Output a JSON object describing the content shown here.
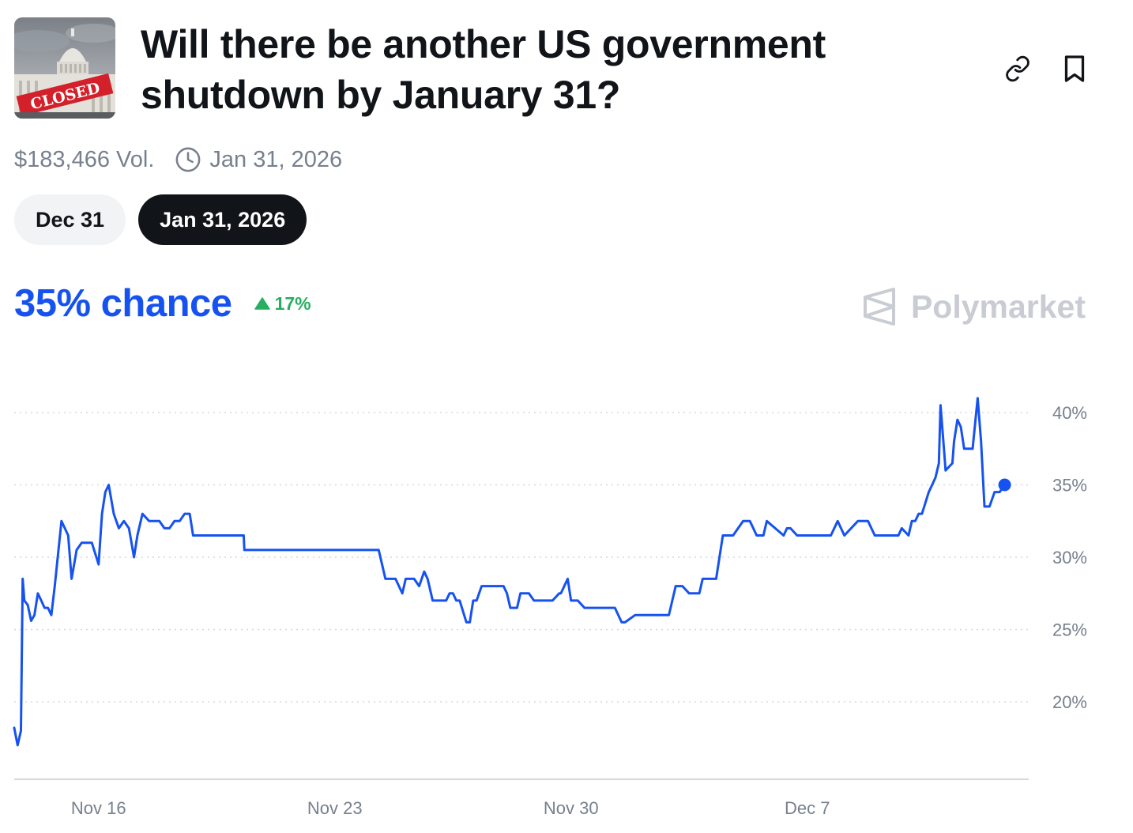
{
  "market": {
    "title": "Will there be another US government shutdown by January 31?",
    "thumbnail_label": "CLOSED",
    "volume": "$183,466 Vol.",
    "end_date": "Jan 31, 2026",
    "tabs": [
      {
        "label": "Dec 31",
        "active": false
      },
      {
        "label": "Jan 31, 2026",
        "active": true
      }
    ],
    "chance": "35% chance",
    "change": "17%",
    "brand": "Polymarket",
    "icons": {
      "link": "link-icon",
      "bookmark": "bookmark-icon",
      "clock": "clock-icon",
      "up": "triangle-up-icon"
    }
  },
  "colors": {
    "accent": "#1652f0",
    "positive": "#27ae60",
    "text": "#111418",
    "muted": "#77808d",
    "grid": "#d5d8dd"
  },
  "chart_data": {
    "type": "line",
    "ylim": [
      15.5,
      42
    ],
    "yticks": [
      20,
      25,
      30,
      35,
      40
    ],
    "ytick_labels": [
      "20%",
      "25%",
      "30%",
      "35%",
      "40%"
    ],
    "xlim": [
      0,
      29.5
    ],
    "xticks": [
      2.5,
      9.5,
      16.5,
      23.5
    ],
    "xtick_labels": [
      "Nov 16",
      "Nov 23",
      "Nov 30",
      "Dec 7"
    ],
    "grid": true,
    "series": [
      {
        "color": "#1652f0",
        "x": [
          0,
          0.1,
          0.2,
          0.25,
          0.3,
          0.4,
          0.5,
          0.6,
          0.7,
          0.8,
          0.9,
          1.0,
          1.1,
          1.2,
          1.4,
          1.6,
          1.7,
          1.85,
          2.0,
          2.15,
          2.3,
          2.5,
          2.6,
          2.7,
          2.8,
          2.95,
          3.1,
          3.25,
          3.4,
          3.55,
          3.65,
          3.8,
          4.0,
          4.15,
          4.3,
          4.45,
          4.6,
          4.75,
          4.9,
          5.05,
          5.2,
          5.3,
          5.4,
          5.55,
          6.8,
          6.82,
          10.8,
          11.0,
          11.2,
          11.3,
          11.5,
          11.6,
          11.7,
          11.85,
          12.0,
          12.15,
          12.25,
          12.4,
          12.5,
          12.65,
          12.8,
          12.9,
          13.0,
          13.1,
          13.2,
          13.4,
          13.5,
          13.6,
          13.7,
          13.85,
          14.5,
          14.6,
          14.7,
          14.8,
          14.9,
          15.0,
          15.25,
          15.4,
          15.5,
          15.55,
          15.6,
          15.95,
          16.15,
          16.2,
          16.3,
          16.4,
          16.5,
          16.55,
          16.7,
          16.9,
          17.0,
          17.8,
          18.0,
          18.1,
          18.4,
          18.6,
          18.8,
          19.4,
          19.6,
          19.8,
          20.0,
          20.3,
          20.4,
          20.6,
          20.8,
          21.0,
          21.2,
          21.3,
          21.6,
          21.8,
          22.0,
          22.2,
          22.3,
          22.8,
          22.9,
          23.0,
          23.2,
          23.4,
          23.5,
          23.7,
          23.9,
          24.0,
          24.2,
          24.4,
          24.6,
          25.0,
          25.2,
          25.3,
          25.5,
          25.7,
          26.2,
          26.3,
          26.5,
          26.6,
          26.7,
          26.8,
          26.9,
          27.1,
          27.2,
          27.3,
          27.4,
          27.45,
          27.55,
          27.6,
          27.8,
          27.85,
          27.95,
          28.05,
          28.15,
          28.4,
          28.55,
          28.65,
          28.75,
          28.9,
          29.05,
          29.2,
          29.35
        ],
        "y": [
          18.2,
          17.0,
          18.0,
          28.5,
          27.0,
          26.7,
          25.6,
          26.0,
          27.5,
          27.0,
          26.5,
          26.5,
          26.0,
          28.0,
          32.5,
          31.5,
          28.5,
          30.5,
          31.0,
          31.0,
          31.0,
          29.5,
          33.0,
          34.5,
          35.0,
          33.0,
          32.0,
          32.5,
          32.0,
          30.0,
          31.5,
          33.0,
          32.5,
          32.5,
          32.5,
          32.0,
          32.0,
          32.5,
          32.5,
          33.0,
          33.0,
          31.5,
          31.5,
          31.5,
          31.5,
          30.5,
          30.5,
          28.5,
          28.5,
          28.5,
          27.5,
          28.5,
          28.5,
          28.5,
          28.0,
          29.0,
          28.5,
          27.0,
          27.0,
          27.0,
          27.0,
          27.5,
          27.5,
          27.0,
          27.0,
          25.5,
          25.5,
          27.0,
          27.0,
          28.0,
          28.0,
          27.5,
          26.5,
          26.5,
          26.5,
          27.5,
          27.5,
          27.0,
          27.0,
          27.0,
          27.0,
          27.0,
          27.5,
          27.5,
          28.0,
          28.5,
          27.0,
          27.0,
          27.0,
          26.5,
          26.5,
          26.5,
          25.5,
          25.5,
          26.0,
          26.0,
          26.0,
          26.0,
          28.0,
          28.0,
          27.5,
          27.5,
          28.5,
          28.5,
          28.5,
          31.5,
          31.5,
          31.5,
          32.5,
          32.5,
          31.5,
          31.5,
          32.5,
          31.5,
          32.0,
          32.0,
          31.5,
          31.5,
          31.5,
          31.5,
          31.5,
          31.5,
          31.5,
          32.5,
          31.5,
          32.5,
          32.5,
          32.5,
          31.5,
          31.5,
          31.5,
          32.0,
          31.5,
          32.5,
          32.5,
          33.0,
          33.0,
          34.5,
          35.0,
          35.5,
          36.5,
          40.5,
          37.5,
          36.0,
          36.5,
          38.0,
          39.5,
          39.0,
          37.5,
          37.5,
          41.0,
          38.0,
          33.5,
          33.5,
          34.5,
          34.5,
          35.0
        ]
      }
    ]
  }
}
